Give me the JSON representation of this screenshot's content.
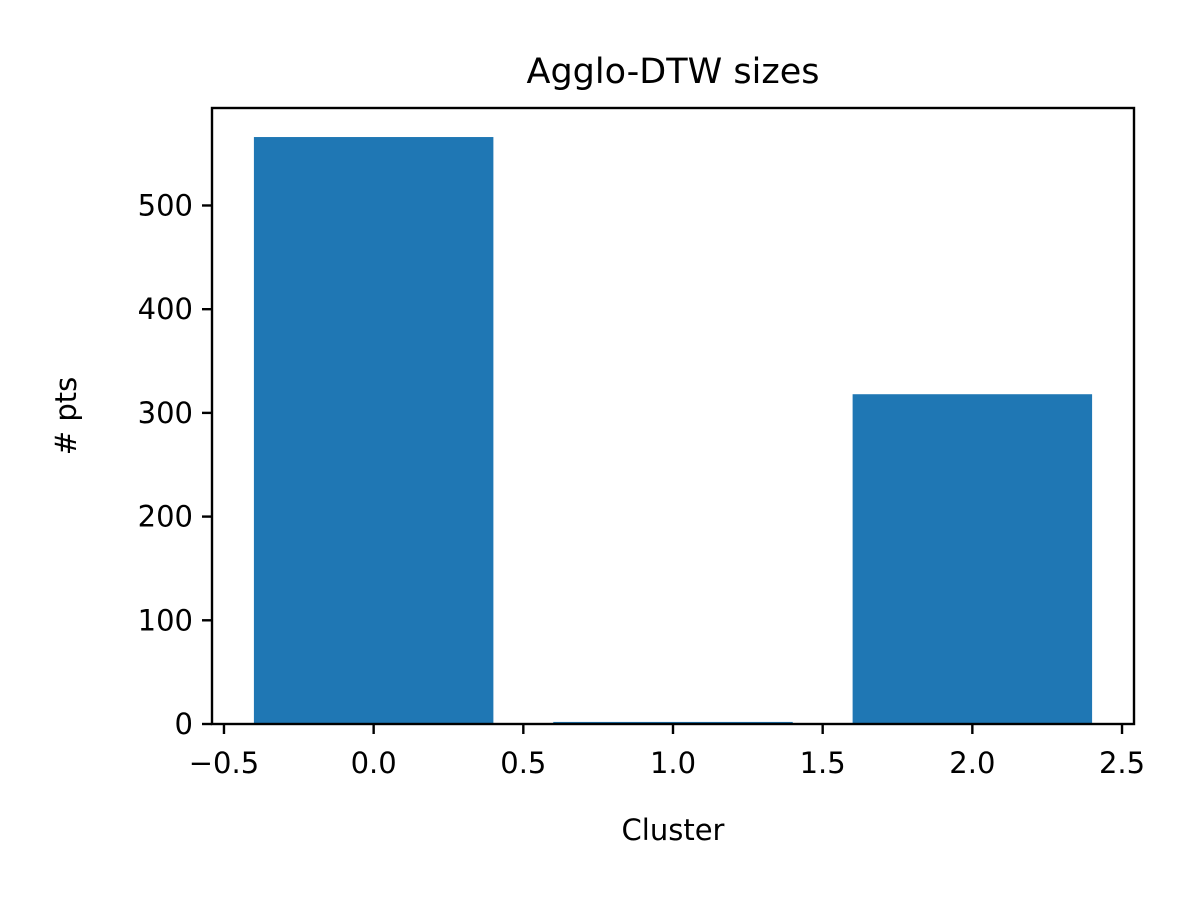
{
  "chart_data": {
    "type": "bar",
    "title": "Agglo-DTW sizes",
    "xlabel": "Cluster",
    "ylabel": "# pts",
    "x": [
      0,
      1,
      2
    ],
    "values": [
      566,
      2,
      318
    ],
    "bar_width": 0.8,
    "xlim": [
      -0.54,
      2.54
    ],
    "ylim": [
      0,
      594
    ],
    "xticks": [
      -0.5,
      0.0,
      0.5,
      1.0,
      1.5,
      2.0,
      2.5
    ],
    "xtick_labels": [
      "−0.5",
      "0.0",
      "0.5",
      "1.0",
      "1.5",
      "2.0",
      "2.5"
    ],
    "yticks": [
      0,
      100,
      200,
      300,
      400,
      500
    ],
    "ytick_labels": [
      "0",
      "100",
      "200",
      "300",
      "400",
      "500"
    ],
    "bar_color": "#1f77b4",
    "grid": false,
    "legend": "none"
  }
}
